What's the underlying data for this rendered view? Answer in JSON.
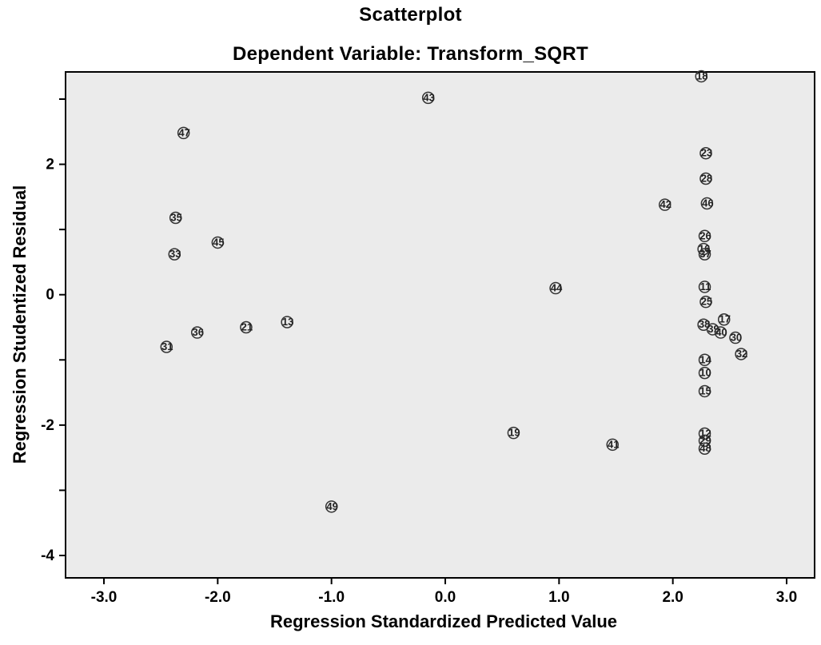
{
  "chart_data": {
    "type": "scatter",
    "title": "Scatterplot",
    "subtitle": "Dependent Variable: Transform_SQRT",
    "xlabel": "Regression Standardized Predicted Value",
    "ylabel": "Regression Studentized Residual",
    "xlim": [
      -3,
      3
    ],
    "ylim": [
      -4,
      3
    ],
    "xticks": [
      -3,
      -2,
      -1,
      0,
      1,
      2,
      3
    ],
    "xtick_labels": [
      "-3.0",
      "-2.0",
      "-1.0",
      "0.0",
      "1.0",
      "2.0",
      "3.0"
    ],
    "yticks": [
      -4,
      -3,
      -2,
      -1,
      0,
      1,
      2,
      3
    ],
    "ytick_labels": [
      "-4",
      "",
      "-2",
      "",
      "0",
      "",
      "2",
      ""
    ],
    "background_color": "#ebebeb",
    "grid": false,
    "point_style": "hollow circle",
    "points": [
      {
        "x": -2.45,
        "y": -0.8,
        "label": "31"
      },
      {
        "x": -2.38,
        "y": 0.62,
        "label": "33"
      },
      {
        "x": -2.37,
        "y": 1.18,
        "label": "35"
      },
      {
        "x": -2.3,
        "y": 2.48,
        "label": "47"
      },
      {
        "x": -2.18,
        "y": -0.58,
        "label": "36"
      },
      {
        "x": -2.0,
        "y": 0.8,
        "label": "45"
      },
      {
        "x": -1.75,
        "y": -0.5,
        "label": "21"
      },
      {
        "x": -1.39,
        "y": -0.42,
        "label": "13"
      },
      {
        "x": -1.0,
        "y": -3.25,
        "label": "49"
      },
      {
        "x": -0.15,
        "y": 3.02,
        "label": "43"
      },
      {
        "x": 0.6,
        "y": -2.12,
        "label": "19"
      },
      {
        "x": 0.97,
        "y": 0.1,
        "label": "44"
      },
      {
        "x": 1.47,
        "y": -2.3,
        "label": "41"
      },
      {
        "x": 1.93,
        "y": 1.38,
        "label": "42"
      },
      {
        "x": 2.25,
        "y": 3.35,
        "label": "18"
      },
      {
        "x": 2.29,
        "y": 2.17,
        "label": "23"
      },
      {
        "x": 2.29,
        "y": 1.78,
        "label": "28"
      },
      {
        "x": 2.3,
        "y": 1.4,
        "label": "46"
      },
      {
        "x": 2.28,
        "y": 0.9,
        "label": "26"
      },
      {
        "x": 2.27,
        "y": 0.7,
        "label": "16"
      },
      {
        "x": 2.28,
        "y": 0.62,
        "label": "37"
      },
      {
        "x": 2.28,
        "y": 0.12,
        "label": "11"
      },
      {
        "x": 2.29,
        "y": -0.11,
        "label": "25"
      },
      {
        "x": 2.27,
        "y": -0.46,
        "label": "38"
      },
      {
        "x": 2.35,
        "y": -0.53,
        "label": "39"
      },
      {
        "x": 2.42,
        "y": -0.58,
        "label": "40"
      },
      {
        "x": 2.45,
        "y": -0.38,
        "label": "17"
      },
      {
        "x": 2.55,
        "y": -0.66,
        "label": "30"
      },
      {
        "x": 2.6,
        "y": -0.91,
        "label": "32"
      },
      {
        "x": 2.28,
        "y": -1.0,
        "label": "14"
      },
      {
        "x": 2.28,
        "y": -1.2,
        "label": "10"
      },
      {
        "x": 2.28,
        "y": -1.48,
        "label": "15"
      },
      {
        "x": 2.28,
        "y": -2.13,
        "label": "12"
      },
      {
        "x": 2.28,
        "y": -2.24,
        "label": "29"
      },
      {
        "x": 2.28,
        "y": -2.36,
        "label": "48"
      }
    ]
  }
}
